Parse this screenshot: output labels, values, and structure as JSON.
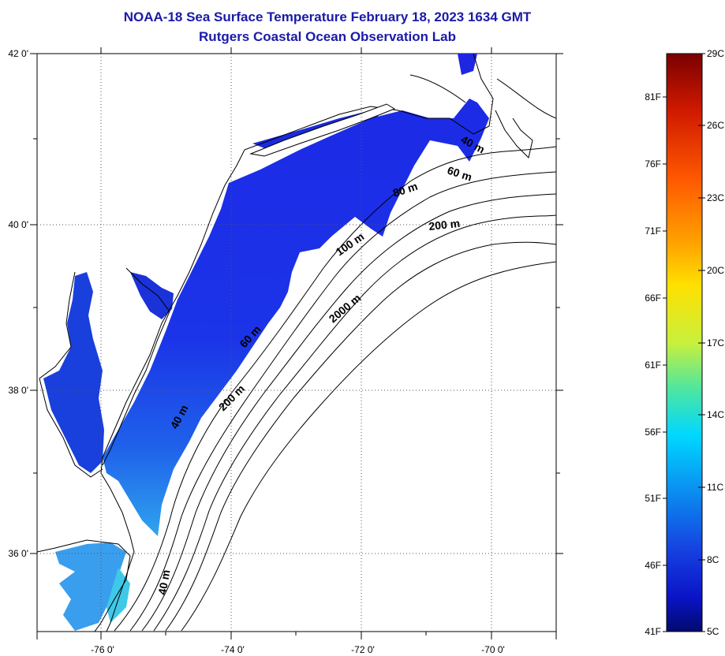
{
  "header": {
    "title": "NOAA-18 Sea Surface Temperature February 18, 2023 1634 GMT",
    "subtitle": "Rutgers Coastal Ocean Observation Lab"
  },
  "map": {
    "lat_labels": [
      "42 0'",
      "40 0'",
      "38 0'",
      "36 0'"
    ],
    "lon_labels": [
      "-76 0'",
      "-74 0'",
      "-72 0'",
      "-70 0'"
    ],
    "contour_labels": [
      "40 m",
      "60 m",
      "80 m",
      "200 m",
      "100 m",
      "2000 m",
      "60 m",
      "40 m",
      "200 m",
      "40 m"
    ]
  },
  "colorbar": {
    "celsius_labels": [
      "29C",
      "26C",
      "23C",
      "20C",
      "17C",
      "14C",
      "11C",
      "8C",
      "5C"
    ],
    "fahrenheit_labels": [
      "81F",
      "76F",
      "71F",
      "66F",
      "61F",
      "56F",
      "51F",
      "46F",
      "41F"
    ],
    "stops": [
      "#7a0000",
      "#d11a00",
      "#ff5a00",
      "#ffa400",
      "#ffe000",
      "#c8f03c",
      "#4ee6a0",
      "#00d8ff",
      "#0a8cf0",
      "#1640e0",
      "#0a14c8",
      "#020a6e"
    ]
  }
}
